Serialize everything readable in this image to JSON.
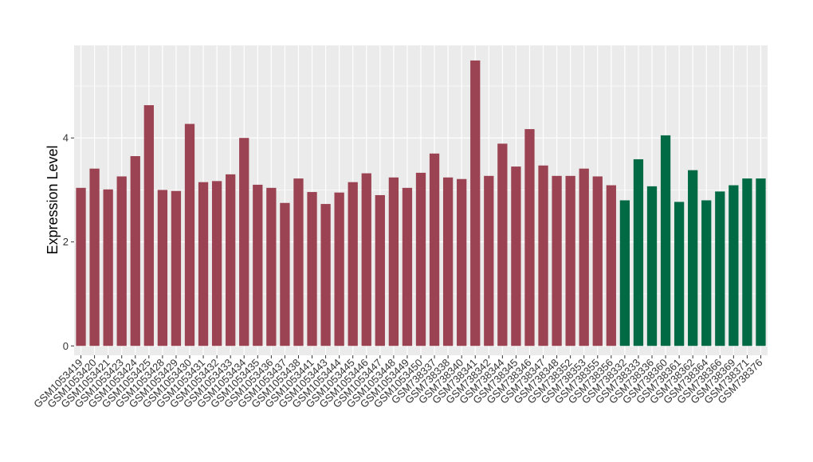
{
  "chart_data": {
    "type": "bar",
    "title": "",
    "xlabel": "",
    "ylabel": "Expression Level",
    "ylim": [
      -0.18,
      5.78
    ],
    "yticks": [
      0,
      2,
      4
    ],
    "grid": true,
    "legend": "none",
    "colors": {
      "group_a": "#9B4352",
      "group_b": "#006A44",
      "panel": "#EBEBEB",
      "grid": "#FFFFFF"
    },
    "categories": [
      "GSM1053419",
      "GSM1053420",
      "GSM1053421",
      "GSM1053423",
      "GSM1053424",
      "GSM1053425",
      "GSM1053428",
      "GSM1053429",
      "GSM1053430",
      "GSM1053431",
      "GSM1053432",
      "GSM1053433",
      "GSM1053434",
      "GSM1053435",
      "GSM1053436",
      "GSM1053437",
      "GSM1053438",
      "GSM1053441",
      "GSM1053443",
      "GSM1053444",
      "GSM1053445",
      "GSM1053446",
      "GSM1053447",
      "GSM1053448",
      "GSM1053449",
      "GSM1053450",
      "GSM738337",
      "GSM738338",
      "GSM738340",
      "GSM738341",
      "GSM738342",
      "GSM738344",
      "GSM738345",
      "GSM738346",
      "GSM738347",
      "GSM738348",
      "GSM738352",
      "GSM738353",
      "GSM738355",
      "GSM738356",
      "GSM738332",
      "GSM738333",
      "GSM738336",
      "GSM738360",
      "GSM738361",
      "GSM738362",
      "GSM738364",
      "GSM738366",
      "GSM738369",
      "GSM738371",
      "GSM738376"
    ],
    "values": [
      3.04,
      3.41,
      3.01,
      3.26,
      3.65,
      4.63,
      3.0,
      2.98,
      4.27,
      3.15,
      3.17,
      3.3,
      4.0,
      3.1,
      3.04,
      2.75,
      3.22,
      2.96,
      2.73,
      2.95,
      3.15,
      3.32,
      2.9,
      3.24,
      3.04,
      3.33,
      3.7,
      3.24,
      3.21,
      5.49,
      3.27,
      3.89,
      3.45,
      4.17,
      3.47,
      3.27,
      3.27,
      3.41,
      3.26,
      3.09,
      2.8,
      3.59,
      3.07,
      4.05,
      2.77,
      3.38,
      2.8,
      2.97,
      3.09,
      3.22,
      3.22
    ],
    "group_a_count": 40
  }
}
